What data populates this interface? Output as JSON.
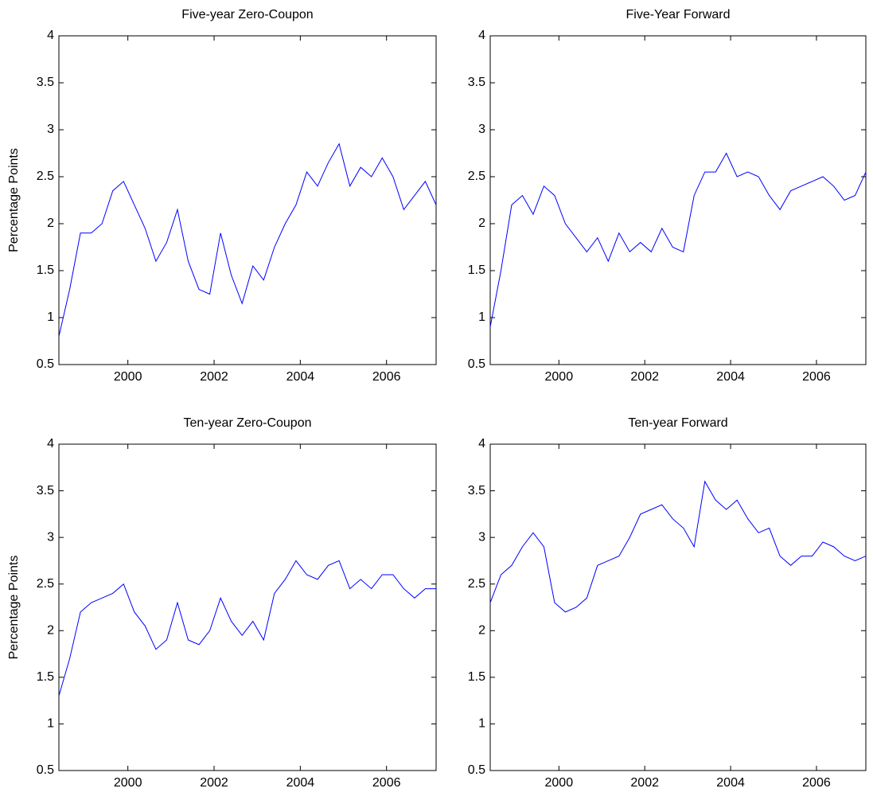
{
  "chart_data": [
    {
      "type": "line",
      "title": "Five-year Zero-Coupon",
      "ylabel": "Percentage Points",
      "color": "#0000ff",
      "xlim": [
        1998.4,
        2007.15
      ],
      "ylim": [
        0.5,
        4
      ],
      "xticks": [
        2000,
        2002,
        2004,
        2006
      ],
      "yticks": [
        0.5,
        1,
        1.5,
        2,
        2.5,
        3,
        3.5,
        4
      ],
      "x": [
        1998.4,
        1998.65,
        1998.9,
        1999.15,
        1999.4,
        1999.65,
        1999.9,
        2000.15,
        2000.4,
        2000.65,
        2000.9,
        2001.15,
        2001.4,
        2001.65,
        2001.9,
        2002.15,
        2002.4,
        2002.65,
        2002.9,
        2003.15,
        2003.4,
        2003.65,
        2003.9,
        2004.15,
        2004.4,
        2004.65,
        2004.9,
        2005.15,
        2005.4,
        2005.65,
        2005.9,
        2006.15,
        2006.4,
        2006.65,
        2006.9,
        2007.15
      ],
      "values": [
        0.8,
        1.3,
        1.9,
        1.9,
        2.0,
        2.35,
        2.45,
        2.2,
        1.95,
        1.6,
        1.8,
        2.15,
        1.6,
        1.3,
        1.25,
        1.9,
        1.45,
        1.15,
        1.55,
        1.4,
        1.75,
        2.0,
        2.2,
        2.55,
        2.4,
        2.65,
        2.85,
        2.4,
        2.6,
        2.5,
        2.7,
        2.5,
        2.15,
        2.3,
        2.45,
        2.2
      ]
    },
    {
      "type": "line",
      "title": "Five-Year Forward",
      "color": "#0000ff",
      "xlim": [
        1998.4,
        2007.15
      ],
      "ylim": [
        0.5,
        4
      ],
      "xticks": [
        2000,
        2002,
        2004,
        2006
      ],
      "yticks": [
        0.5,
        1,
        1.5,
        2,
        2.5,
        3,
        3.5,
        4
      ],
      "x": [
        1998.4,
        1998.65,
        1998.9,
        1999.15,
        1999.4,
        1999.65,
        1999.9,
        2000.15,
        2000.4,
        2000.65,
        2000.9,
        2001.15,
        2001.4,
        2001.65,
        2001.9,
        2002.15,
        2002.4,
        2002.65,
        2002.9,
        2003.15,
        2003.4,
        2003.65,
        2003.9,
        2004.15,
        2004.4,
        2004.65,
        2004.9,
        2005.15,
        2005.4,
        2005.65,
        2005.9,
        2006.15,
        2006.4,
        2006.65,
        2006.9,
        2007.15
      ],
      "values": [
        0.9,
        1.5,
        2.2,
        2.3,
        2.1,
        2.4,
        2.3,
        2.0,
        1.85,
        1.7,
        1.85,
        1.6,
        1.9,
        1.7,
        1.8,
        1.7,
        1.95,
        1.75,
        1.7,
        2.3,
        2.55,
        2.55,
        2.75,
        2.5,
        2.55,
        2.5,
        2.3,
        2.15,
        2.35,
        2.4,
        2.45,
        2.5,
        2.4,
        2.25,
        2.3,
        2.55
      ]
    },
    {
      "type": "line",
      "title": "Ten-year Zero-Coupon",
      "ylabel": "Percentage Points",
      "color": "#0000ff",
      "xlim": [
        1998.4,
        2007.15
      ],
      "ylim": [
        0.5,
        4
      ],
      "xticks": [
        2000,
        2002,
        2004,
        2006
      ],
      "yticks": [
        0.5,
        1,
        1.5,
        2,
        2.5,
        3,
        3.5,
        4
      ],
      "x": [
        1998.4,
        1998.65,
        1998.9,
        1999.15,
        1999.4,
        1999.65,
        1999.9,
        2000.15,
        2000.4,
        2000.65,
        2000.9,
        2001.15,
        2001.4,
        2001.65,
        2001.9,
        2002.15,
        2002.4,
        2002.65,
        2002.9,
        2003.15,
        2003.4,
        2003.65,
        2003.9,
        2004.15,
        2004.4,
        2004.65,
        2004.9,
        2005.15,
        2005.4,
        2005.65,
        2005.9,
        2006.15,
        2006.4,
        2006.65,
        2006.9,
        2007.15
      ],
      "values": [
        1.3,
        1.7,
        2.2,
        2.3,
        2.35,
        2.4,
        2.5,
        2.2,
        2.05,
        1.8,
        1.9,
        2.3,
        1.9,
        1.85,
        2.0,
        2.35,
        2.1,
        1.95,
        2.1,
        1.9,
        2.4,
        2.55,
        2.75,
        2.6,
        2.55,
        2.7,
        2.75,
        2.45,
        2.55,
        2.45,
        2.6,
        2.6,
        2.45,
        2.35,
        2.45,
        2.45
      ]
    },
    {
      "type": "line",
      "title": "Ten-year Forward",
      "color": "#0000ff",
      "xlim": [
        1998.4,
        2007.15
      ],
      "ylim": [
        0.5,
        4
      ],
      "xticks": [
        2000,
        2002,
        2004,
        2006
      ],
      "yticks": [
        0.5,
        1,
        1.5,
        2,
        2.5,
        3,
        3.5,
        4
      ],
      "x": [
        1998.4,
        1998.65,
        1998.9,
        1999.15,
        1999.4,
        1999.65,
        1999.9,
        2000.15,
        2000.4,
        2000.65,
        2000.9,
        2001.15,
        2001.4,
        2001.65,
        2001.9,
        2002.15,
        2002.4,
        2002.65,
        2002.9,
        2003.15,
        2003.4,
        2003.65,
        2003.9,
        2004.15,
        2004.4,
        2004.65,
        2004.9,
        2005.15,
        2005.4,
        2005.65,
        2005.9,
        2006.15,
        2006.4,
        2006.65,
        2006.9,
        2007.15
      ],
      "values": [
        2.3,
        2.6,
        2.7,
        2.9,
        3.05,
        2.9,
        2.3,
        2.2,
        2.25,
        2.35,
        2.7,
        2.75,
        2.8,
        3.0,
        3.25,
        3.3,
        3.35,
        3.2,
        3.1,
        2.9,
        3.6,
        3.4,
        3.3,
        3.4,
        3.2,
        3.05,
        3.1,
        2.8,
        2.7,
        2.8,
        2.8,
        2.95,
        2.9,
        2.8,
        2.75,
        2.8
      ]
    }
  ]
}
